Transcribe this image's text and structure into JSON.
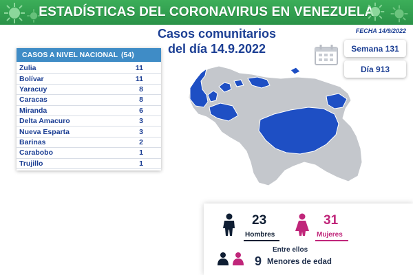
{
  "header": {
    "title": "ESTADÍSTICAS DEL CORONAVIRUS EN VENEZUELA"
  },
  "subtitle": {
    "line1": "Casos comunitarios",
    "line2": "del día 14.9.2022"
  },
  "fecha": "FECHA 14/9/2022",
  "semana": "Semana 131",
  "dia": "Día 913",
  "table": {
    "title": "CASOS A NIVEL NACIONAL",
    "total": "(54)",
    "rows": [
      {
        "state": "Zulia",
        "value": "11"
      },
      {
        "state": "Bolívar",
        "value": "11"
      },
      {
        "state": "Yaracuy",
        "value": "8"
      },
      {
        "state": "Caracas",
        "value": "8"
      },
      {
        "state": "Miranda",
        "value": "6"
      },
      {
        "state": "Delta Amacuro",
        "value": "3"
      },
      {
        "state": "Nueva Esparta",
        "value": "3"
      },
      {
        "state": "Barinas",
        "value": "2"
      },
      {
        "state": "Carabobo",
        "value": "1"
      },
      {
        "state": "Trujillo",
        "value": "1"
      }
    ]
  },
  "stats": {
    "hombres_num": "23",
    "hombres_label": "Hombres",
    "mujeres_num": "31",
    "mujeres_label": "Mujeres",
    "entre": "Entre ellos",
    "menores_num": "9",
    "menores_label": "Menores de edad"
  },
  "colors": {
    "banner": "#2f9e4f",
    "navy": "#1c3f94",
    "table_header": "#3f8cc6",
    "map_highlight": "#1e4fc4",
    "map_base": "#c4c7cc",
    "male": "#0f1e33",
    "female": "#c0267a"
  }
}
